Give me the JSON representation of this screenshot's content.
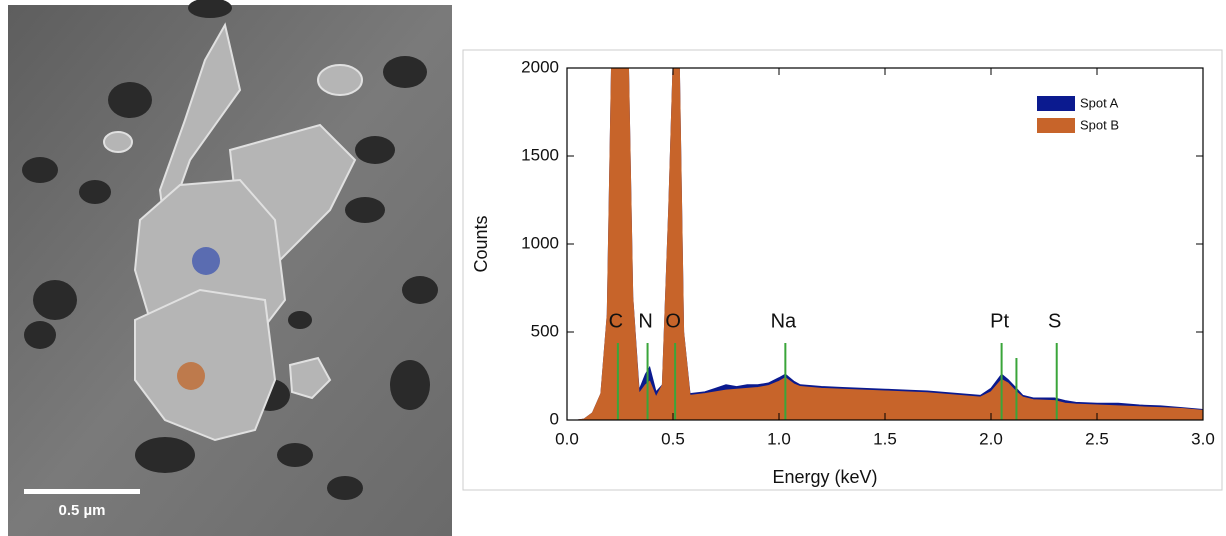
{
  "image": {
    "scale_label": "0.5 µm"
  },
  "chart_data": {
    "type": "area",
    "xlabel": "Energy (keV)",
    "ylabel": "Counts",
    "xlim": [
      0,
      3.0
    ],
    "ylim": [
      0,
      2000
    ],
    "xticks": [
      {
        "value": 0,
        "label": "0.0"
      },
      0.5,
      {
        "value": 1,
        "label": "1.0"
      },
      1.5,
      {
        "value": 2,
        "label": "2.0"
      },
      2.5,
      {
        "value": 3,
        "label": "3.0"
      }
    ],
    "yticks": [
      0,
      500,
      1000,
      1500,
      2000
    ],
    "legend": "upper right",
    "x": [
      0.05,
      0.08,
      0.12,
      0.16,
      0.19,
      0.21,
      0.25,
      0.29,
      0.31,
      0.34,
      0.37,
      0.39,
      0.42,
      0.45,
      0.48,
      0.5,
      0.53,
      0.55,
      0.58,
      0.65,
      0.7,
      0.75,
      0.8,
      0.85,
      0.9,
      0.95,
      1.0,
      1.03,
      1.07,
      1.1,
      1.2,
      1.3,
      1.4,
      1.5,
      1.6,
      1.7,
      1.8,
      1.9,
      1.95,
      2.0,
      2.05,
      2.08,
      2.12,
      2.15,
      2.2,
      2.3,
      2.35,
      2.4,
      2.5,
      2.6,
      2.7,
      2.8,
      2.9,
      3.0
    ],
    "series": [
      {
        "name": "Spot A",
        "color": "#0b1a8f",
        "values": [
          0,
          5,
          40,
          150,
          600,
          2000,
          2000,
          2000,
          700,
          170,
          260,
          300,
          160,
          200,
          1200,
          2000,
          2000,
          500,
          150,
          160,
          180,
          200,
          190,
          200,
          200,
          210,
          240,
          260,
          220,
          200,
          190,
          185,
          180,
          175,
          170,
          165,
          155,
          145,
          140,
          180,
          260,
          230,
          180,
          140,
          125,
          125,
          110,
          100,
          95,
          95,
          85,
          80,
          70,
          60
        ]
      },
      {
        "name": "Spot B",
        "color": "#c7642a",
        "values": [
          0,
          5,
          40,
          150,
          600,
          2000,
          2000,
          2000,
          700,
          150,
          200,
          220,
          130,
          200,
          1200,
          2000,
          2000,
          500,
          140,
          150,
          160,
          170,
          175,
          180,
          185,
          195,
          220,
          240,
          205,
          190,
          180,
          175,
          170,
          165,
          160,
          155,
          145,
          135,
          130,
          160,
          230,
          210,
          160,
          130,
          115,
          110,
          95,
          90,
          85,
          80,
          75,
          70,
          65,
          55
        ]
      }
    ],
    "annotations": [
      {
        "label": "C",
        "x": 0.24
      },
      {
        "label": "N",
        "x": 0.38
      },
      {
        "label": "O",
        "x": 0.51
      },
      {
        "label": "Na",
        "x": 1.03
      },
      {
        "label": "Pt",
        "x": 2.05
      },
      {
        "label": null,
        "x": 2.12
      },
      {
        "label": "S",
        "x": 2.31
      }
    ]
  }
}
